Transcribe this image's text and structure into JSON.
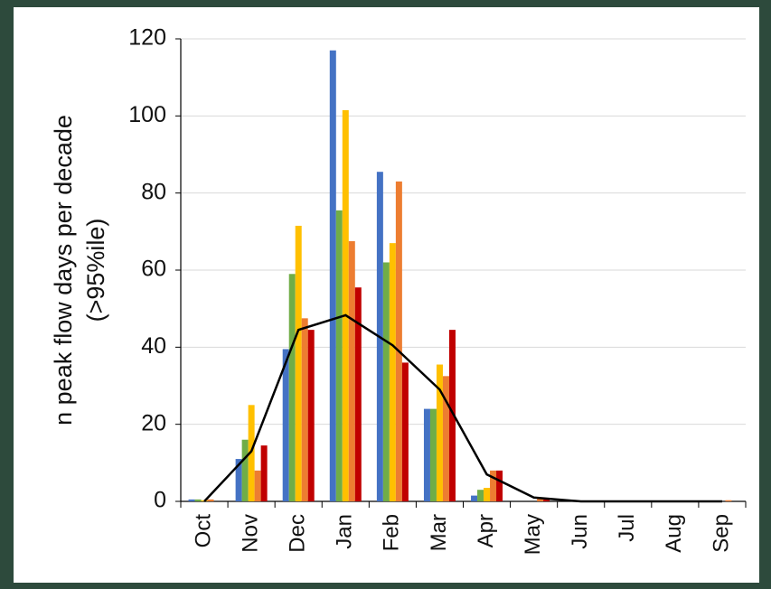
{
  "chart_data": {
    "type": "bar",
    "ylabel": [
      "n peak flow days per decade",
      "(>95%ile)"
    ],
    "categories": [
      "Oct",
      "Nov",
      "Dec",
      "Jan",
      "Feb",
      "Mar",
      "Apr",
      "May",
      "Jun",
      "Jul",
      "Aug",
      "Sep"
    ],
    "series": [
      {
        "color": "#4472c4",
        "values": [
          0.5,
          11,
          39.5,
          117,
          85.5,
          24,
          1.5,
          0,
          0,
          0,
          0,
          0
        ]
      },
      {
        "color": "#70ad47",
        "values": [
          0.5,
          16,
          59,
          75.5,
          62,
          24,
          3,
          0,
          0,
          0,
          0,
          0
        ]
      },
      {
        "color": "#ffc000",
        "values": [
          0.3,
          25,
          71.5,
          101.5,
          67,
          35.5,
          3.5,
          0,
          0,
          0,
          0,
          0
        ]
      },
      {
        "color": "#ed7d31",
        "values": [
          0.5,
          8,
          47.5,
          67.5,
          83,
          32.5,
          8,
          1,
          0,
          0,
          0,
          0.3
        ]
      },
      {
        "color": "#c00000",
        "values": [
          0,
          14.5,
          44.5,
          55.5,
          36,
          44.5,
          8,
          0.5,
          0,
          0,
          0,
          0
        ]
      },
      {
        "type": "line",
        "color": "#000000",
        "values": [
          0,
          13,
          44.5,
          48.3,
          40.5,
          29,
          7,
          1,
          0,
          0,
          0,
          0
        ]
      }
    ],
    "ylim": [
      0,
      120
    ],
    "yticks": [
      0,
      20,
      40,
      60,
      80,
      100,
      120
    ],
    "grid": true
  }
}
